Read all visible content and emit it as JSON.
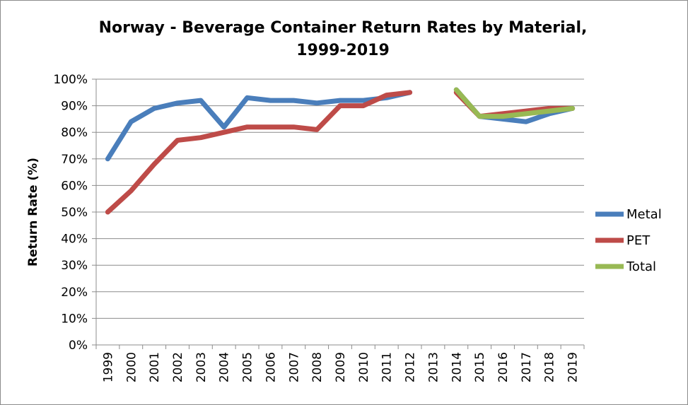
{
  "chart_data": {
    "type": "line",
    "title_line1": "Norway - Beverage Container Return Rates by Material,",
    "title_line2": "1999-2019",
    "ylabel": "Return Rate (%)",
    "xlabel": "",
    "ylim": [
      0,
      100
    ],
    "y_ticks": [
      "0%",
      "10%",
      "20%",
      "30%",
      "40%",
      "50%",
      "60%",
      "70%",
      "80%",
      "90%",
      "100%"
    ],
    "categories": [
      "1999",
      "2000",
      "2001",
      "2002",
      "2003",
      "2004",
      "2005",
      "2006",
      "2007",
      "2008",
      "2009",
      "2010",
      "2011",
      "2012",
      "2013",
      "2014",
      "2015",
      "2016",
      "2017",
      "2018",
      "2019"
    ],
    "grid": "horizontal",
    "legend": "right",
    "series": [
      {
        "name": "Metal",
        "color": "#4a7ebb",
        "values": [
          70,
          84,
          89,
          91,
          92,
          82,
          93,
          92,
          92,
          91,
          92,
          92,
          93,
          95,
          null,
          96,
          86,
          85,
          84,
          87,
          89
        ]
      },
      {
        "name": "PET",
        "color": "#be4b48",
        "values": [
          50,
          58,
          68,
          77,
          78,
          80,
          82,
          82,
          82,
          81,
          90,
          90,
          94,
          95,
          null,
          95,
          86,
          87,
          88,
          89,
          89
        ]
      },
      {
        "name": "Total",
        "color": "#98b954",
        "values": [
          null,
          null,
          null,
          null,
          null,
          null,
          null,
          null,
          null,
          null,
          null,
          null,
          null,
          null,
          null,
          96,
          86,
          86,
          87,
          88,
          89
        ]
      }
    ]
  }
}
